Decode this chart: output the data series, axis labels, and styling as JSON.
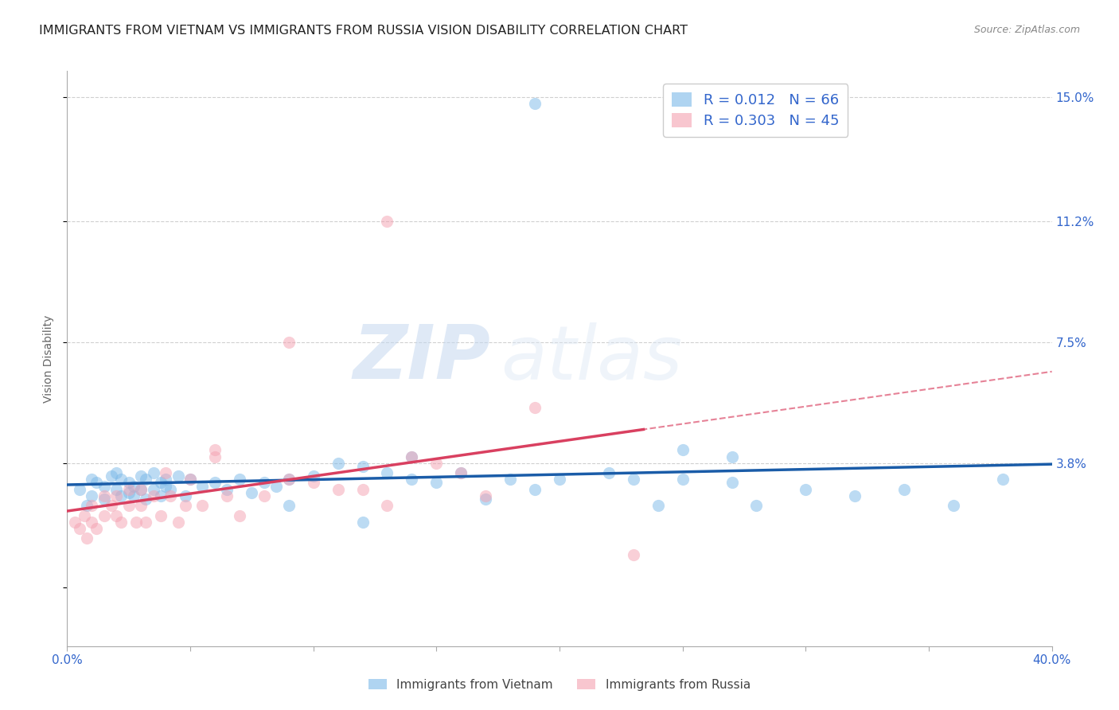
{
  "title": "IMMIGRANTS FROM VIETNAM VS IMMIGRANTS FROM RUSSIA VISION DISABILITY CORRELATION CHART",
  "source": "Source: ZipAtlas.com",
  "ylabel": "Vision Disability",
  "yticks": [
    0.0,
    0.038,
    0.075,
    0.112,
    0.15
  ],
  "ytick_labels": [
    "",
    "3.8%",
    "7.5%",
    "11.2%",
    "15.0%"
  ],
  "xlim": [
    0.0,
    0.4
  ],
  "ylim": [
    -0.018,
    0.158
  ],
  "vietnam_color": "#7ab8e8",
  "russia_color": "#f4a0b0",
  "vietnam_line_color": "#1a5ca8",
  "russia_line_color": "#d94060",
  "vietnam_R": "0.012",
  "vietnam_N": "66",
  "russia_R": "0.303",
  "russia_N": "45",
  "legend_label_vietnam": "Immigrants from Vietnam",
  "legend_label_russia": "Immigrants from Russia",
  "watermark_zip": "ZIP",
  "watermark_atlas": "atlas",
  "title_fontsize": 11.5,
  "axis_label_fontsize": 10,
  "tick_fontsize": 11,
  "legend_fontsize": 13,
  "vietnam_x": [
    0.005,
    0.008,
    0.01,
    0.01,
    0.012,
    0.015,
    0.015,
    0.018,
    0.02,
    0.02,
    0.022,
    0.022,
    0.025,
    0.025,
    0.027,
    0.027,
    0.03,
    0.03,
    0.032,
    0.032,
    0.035,
    0.035,
    0.038,
    0.038,
    0.04,
    0.04,
    0.042,
    0.045,
    0.048,
    0.05,
    0.055,
    0.06,
    0.065,
    0.07,
    0.075,
    0.08,
    0.085,
    0.09,
    0.1,
    0.11,
    0.12,
    0.13,
    0.14,
    0.15,
    0.16,
    0.17,
    0.18,
    0.19,
    0.2,
    0.22,
    0.24,
    0.25,
    0.27,
    0.28,
    0.3,
    0.32,
    0.34,
    0.36,
    0.38,
    0.14,
    0.19,
    0.23,
    0.25,
    0.27,
    0.09,
    0.12
  ],
  "vietnam_y": [
    0.03,
    0.025,
    0.033,
    0.028,
    0.032,
    0.031,
    0.027,
    0.034,
    0.03,
    0.035,
    0.028,
    0.033,
    0.029,
    0.032,
    0.031,
    0.028,
    0.034,
    0.03,
    0.033,
    0.027,
    0.035,
    0.03,
    0.032,
    0.028,
    0.033,
    0.031,
    0.03,
    0.034,
    0.028,
    0.033,
    0.031,
    0.032,
    0.03,
    0.033,
    0.029,
    0.032,
    0.031,
    0.033,
    0.034,
    0.038,
    0.037,
    0.035,
    0.033,
    0.032,
    0.035,
    0.027,
    0.033,
    0.03,
    0.033,
    0.035,
    0.025,
    0.033,
    0.032,
    0.025,
    0.03,
    0.028,
    0.03,
    0.025,
    0.033,
    0.04,
    0.148,
    0.033,
    0.042,
    0.04,
    0.025,
    0.02
  ],
  "russia_x": [
    0.003,
    0.005,
    0.007,
    0.008,
    0.01,
    0.01,
    0.012,
    0.015,
    0.015,
    0.018,
    0.02,
    0.02,
    0.022,
    0.025,
    0.025,
    0.028,
    0.03,
    0.03,
    0.032,
    0.035,
    0.038,
    0.04,
    0.042,
    0.045,
    0.048,
    0.05,
    0.055,
    0.06,
    0.065,
    0.07,
    0.08,
    0.09,
    0.1,
    0.11,
    0.12,
    0.13,
    0.14,
    0.15,
    0.16,
    0.17,
    0.06,
    0.09,
    0.13,
    0.19,
    0.23
  ],
  "russia_y": [
    0.02,
    0.018,
    0.022,
    0.015,
    0.025,
    0.02,
    0.018,
    0.028,
    0.022,
    0.025,
    0.028,
    0.022,
    0.02,
    0.03,
    0.025,
    0.02,
    0.03,
    0.025,
    0.02,
    0.028,
    0.022,
    0.035,
    0.028,
    0.02,
    0.025,
    0.033,
    0.025,
    0.04,
    0.028,
    0.022,
    0.028,
    0.033,
    0.032,
    0.03,
    0.03,
    0.025,
    0.04,
    0.038,
    0.035,
    0.028,
    0.042,
    0.075,
    0.112,
    0.055,
    0.01
  ],
  "scatter_size": 120
}
